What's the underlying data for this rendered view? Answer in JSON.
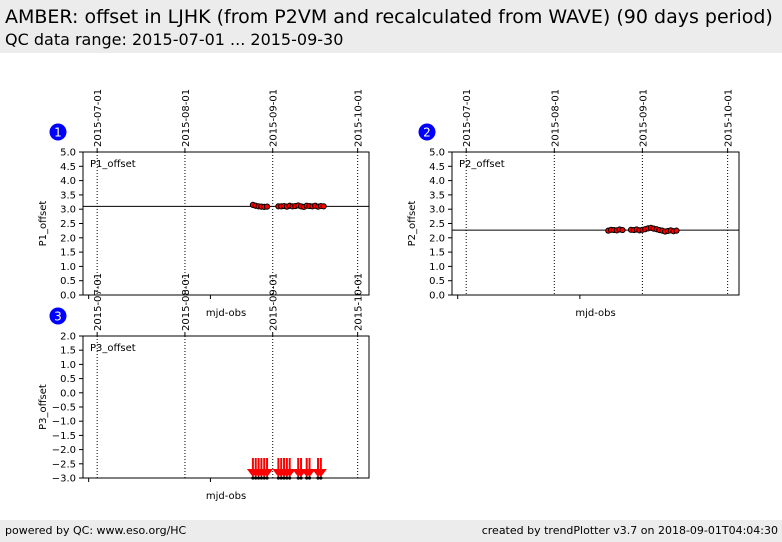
{
  "header": {
    "title": "AMBER: offset in LJHK (from P2VM and recalculated from WAVE) (90 days period)",
    "subtitle": "QC data range: 2015-07-01 ... 2015-09-30"
  },
  "footer": {
    "left": "powered by QC: www.eso.org/HC",
    "right": "created by trendPlotter v3.7 on 2018-09-01T04:04:30"
  },
  "colors": {
    "marker_fill": "#ff0000",
    "marker_edge": "#000000",
    "badge": "#0000ff",
    "background_band": "#ececec"
  },
  "chart_data": [
    {
      "type": "scatter",
      "badge": "1",
      "panel_label": "P1_offset",
      "ylabel": "P1_offset",
      "xlabel": "mjd-obs",
      "ylim": [
        0.0,
        5.0
      ],
      "yticks": [
        "0.0",
        "0.5",
        "1.0",
        "1.5",
        "2.0",
        "2.5",
        "3.0",
        "3.5",
        "4.0",
        "4.5",
        "5.0"
      ],
      "date_ticks": [
        "2015-07-01",
        "2015-08-01",
        "2015-09-01",
        "2015-10-01"
      ],
      "reference_line": 3.1,
      "series": [
        {
          "x": [
            "2015-08-25",
            "2015-08-26",
            "2015-08-27",
            "2015-08-28",
            "2015-08-29",
            "2015-08-30",
            "2015-09-03",
            "2015-09-04",
            "2015-09-05",
            "2015-09-06",
            "2015-09-07",
            "2015-09-08",
            "2015-09-09",
            "2015-09-10",
            "2015-09-11",
            "2015-09-12",
            "2015-09-13",
            "2015-09-14",
            "2015-09-15",
            "2015-09-16",
            "2015-09-17",
            "2015-09-18",
            "2015-09-19"
          ],
          "y": [
            3.15,
            3.12,
            3.1,
            3.09,
            3.08,
            3.09,
            3.1,
            3.1,
            3.11,
            3.09,
            3.12,
            3.1,
            3.11,
            3.13,
            3.1,
            3.08,
            3.12,
            3.11,
            3.1,
            3.12,
            3.09,
            3.11,
            3.1
          ]
        }
      ]
    },
    {
      "type": "scatter",
      "badge": "2",
      "panel_label": "P2_offset",
      "ylabel": "P2_offset",
      "xlabel": "mjd-obs",
      "ylim": [
        0.0,
        5.0
      ],
      "yticks": [
        "0.0",
        "0.5",
        "1.0",
        "1.5",
        "2.0",
        "2.5",
        "3.0",
        "3.5",
        "4.0",
        "4.5",
        "5.0"
      ],
      "date_ticks": [
        "2015-07-01",
        "2015-08-01",
        "2015-09-01",
        "2015-10-01"
      ],
      "reference_line": 2.27,
      "series": [
        {
          "x": [
            "2015-08-20",
            "2015-08-21",
            "2015-08-22",
            "2015-08-23",
            "2015-08-24",
            "2015-08-25",
            "2015-08-28",
            "2015-08-29",
            "2015-08-30",
            "2015-08-31",
            "2015-09-01",
            "2015-09-02",
            "2015-09-03",
            "2015-09-04",
            "2015-09-05",
            "2015-09-06",
            "2015-09-07",
            "2015-09-08",
            "2015-09-09",
            "2015-09-10",
            "2015-09-11",
            "2015-09-12",
            "2015-09-13"
          ],
          "y": [
            2.25,
            2.28,
            2.27,
            2.26,
            2.29,
            2.27,
            2.28,
            2.27,
            2.29,
            2.26,
            2.28,
            2.3,
            2.33,
            2.35,
            2.32,
            2.3,
            2.27,
            2.25,
            2.22,
            2.24,
            2.26,
            2.23,
            2.25
          ]
        }
      ]
    },
    {
      "type": "scatter",
      "badge": "3",
      "panel_label": "P3_offset",
      "ylabel": "P3_offset",
      "xlabel": "mjd-obs",
      "ylim": [
        -3.0,
        2.0
      ],
      "yticks": [
        "−3.0",
        "−2.5",
        "−2.0",
        "−1.5",
        "−1.0",
        "−0.5",
        "0.0",
        "0.5",
        "1.0",
        "1.5",
        "2.0"
      ],
      "date_ticks": [
        "2015-07-01",
        "2015-08-01",
        "2015-09-01",
        "2015-10-01"
      ],
      "reference_line": null,
      "series": [
        {
          "x": [
            "2015-08-25",
            "2015-08-26",
            "2015-08-27",
            "2015-08-28",
            "2015-08-29",
            "2015-08-30",
            "2015-09-03",
            "2015-09-04",
            "2015-09-05",
            "2015-09-06",
            "2015-09-07",
            "2015-09-10",
            "2015-09-11",
            "2015-09-13",
            "2015-09-14",
            "2015-09-17",
            "2015-09-18"
          ],
          "y": [
            -3.0,
            -3.0,
            -3.0,
            -3.0,
            -3.0,
            -3.0,
            -3.0,
            -3.0,
            -3.0,
            -3.0,
            -3.0,
            -3.0,
            -3.0,
            -3.0,
            -3.0,
            -3.0,
            -3.0
          ],
          "marker": "down-arrow (out of range)"
        }
      ]
    }
  ]
}
